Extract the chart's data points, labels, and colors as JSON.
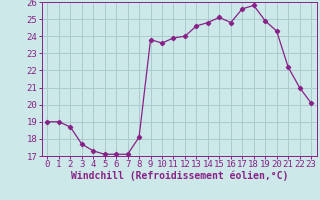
{
  "x": [
    0,
    1,
    2,
    3,
    4,
    5,
    6,
    7,
    8,
    9,
    10,
    11,
    12,
    13,
    14,
    15,
    16,
    17,
    18,
    19,
    20,
    21,
    22,
    23
  ],
  "y": [
    19.0,
    19.0,
    18.7,
    17.7,
    17.3,
    17.1,
    17.1,
    17.1,
    18.1,
    23.8,
    23.6,
    23.9,
    24.0,
    24.6,
    24.8,
    25.1,
    24.8,
    25.6,
    25.8,
    24.9,
    24.3,
    22.2,
    21.0,
    20.1
  ],
  "ylim": [
    17,
    26
  ],
  "yticks": [
    17,
    18,
    19,
    20,
    21,
    22,
    23,
    24,
    25,
    26
  ],
  "xticks": [
    0,
    1,
    2,
    3,
    4,
    5,
    6,
    7,
    8,
    9,
    10,
    11,
    12,
    13,
    14,
    15,
    16,
    17,
    18,
    19,
    20,
    21,
    22,
    23
  ],
  "xlabel": "Windchill (Refroidissement éolien,°C)",
  "line_color": "#882288",
  "marker": "D",
  "marker_size": 2.2,
  "bg_color": "#cce8e8",
  "grid_color": "#aacccc",
  "tick_fontsize": 6.5,
  "xlabel_fontsize": 7.0,
  "line_width": 0.9
}
